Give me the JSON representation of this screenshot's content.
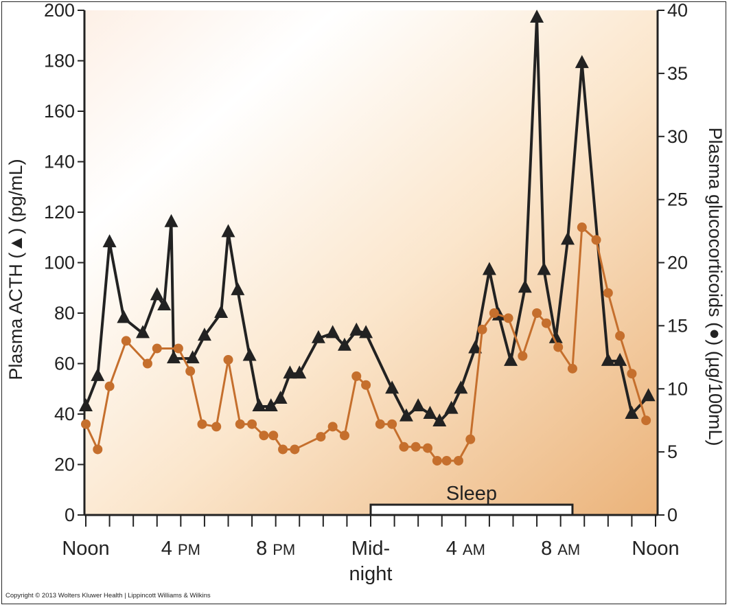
{
  "chart_data": {
    "type": "line",
    "left_axis": {
      "title": "Plasma ACTH (▲) (pg/mL)",
      "range": [
        0,
        200
      ],
      "ticks": [
        "0",
        "20",
        "40",
        "60",
        "80",
        "100",
        "120",
        "140",
        "160",
        "180",
        "200"
      ]
    },
    "right_axis": {
      "title": "Plasma glucocorticoids (●) (µg/100mL)",
      "range": [
        0,
        40
      ],
      "ticks": [
        "0",
        "5",
        "10",
        "15",
        "20",
        "25",
        "30",
        "35",
        "40"
      ]
    },
    "x_axis": {
      "range_hours_since_noon": [
        0,
        24
      ],
      "labels": [
        {
          "hour": 0,
          "line1": "Noon",
          "small1": "",
          "line2": ""
        },
        {
          "hour": 4,
          "line1": "4 ",
          "small1": "PM",
          "line2": ""
        },
        {
          "hour": 8,
          "line1": "8 ",
          "small1": "PM",
          "line2": ""
        },
        {
          "hour": 12,
          "line1": "Mid-",
          "small1": "",
          "line2": "night"
        },
        {
          "hour": 16,
          "line1": "4 ",
          "small1": "AM",
          "line2": ""
        },
        {
          "hour": 20,
          "line1": "8 ",
          "small1": "AM",
          "line2": ""
        },
        {
          "hour": 24,
          "line1": "Noon",
          "small1": "",
          "line2": ""
        }
      ]
    },
    "sleep_period": {
      "label": "Sleep",
      "start_hour": 12.0,
      "end_hour": 20.5
    },
    "series": [
      {
        "name": "Plasma ACTH",
        "axis": "left",
        "marker": "triangle",
        "color": "#222222",
        "points": [
          [
            0.0,
            43
          ],
          [
            0.5,
            55
          ],
          [
            1.0,
            108
          ],
          [
            1.6,
            78
          ],
          [
            2.4,
            72
          ],
          [
            3.0,
            87
          ],
          [
            3.3,
            83
          ],
          [
            3.6,
            116
          ],
          [
            3.7,
            62
          ],
          [
            4.5,
            62
          ],
          [
            5.0,
            71
          ],
          [
            5.7,
            80
          ],
          [
            6.0,
            112
          ],
          [
            6.4,
            89
          ],
          [
            6.9,
            63
          ],
          [
            7.3,
            43
          ],
          [
            7.8,
            43
          ],
          [
            8.2,
            46
          ],
          [
            8.6,
            56
          ],
          [
            9.0,
            56
          ],
          [
            9.8,
            70
          ],
          [
            10.4,
            72
          ],
          [
            10.9,
            67
          ],
          [
            11.4,
            73
          ],
          [
            11.8,
            72
          ],
          [
            12.9,
            50
          ],
          [
            13.5,
            39
          ],
          [
            14.0,
            43
          ],
          [
            14.5,
            40
          ],
          [
            14.9,
            37
          ],
          [
            15.4,
            42
          ],
          [
            15.8,
            50
          ],
          [
            16.4,
            66
          ],
          [
            17.0,
            97
          ],
          [
            17.4,
            79
          ],
          [
            17.9,
            61
          ],
          [
            18.5,
            90
          ],
          [
            19.0,
            197
          ],
          [
            19.3,
            97
          ],
          [
            19.8,
            70
          ],
          [
            20.3,
            109
          ],
          [
            20.9,
            179
          ],
          [
            22.0,
            61
          ],
          [
            22.5,
            61
          ],
          [
            23.0,
            40
          ],
          [
            23.7,
            47
          ]
        ]
      },
      {
        "name": "Plasma glucocorticoids",
        "axis": "right",
        "marker": "circle",
        "color": "#c56f2d",
        "points": [
          [
            0.0,
            7.2
          ],
          [
            0.5,
            5.2
          ],
          [
            1.0,
            10.2
          ],
          [
            1.7,
            13.8
          ],
          [
            2.6,
            12.0
          ],
          [
            3.0,
            13.2
          ],
          [
            3.9,
            13.2
          ],
          [
            4.4,
            11.4
          ],
          [
            4.9,
            7.2
          ],
          [
            5.5,
            7.0
          ],
          [
            6.0,
            12.3
          ],
          [
            6.5,
            7.2
          ],
          [
            7.0,
            7.2
          ],
          [
            7.5,
            6.3
          ],
          [
            7.9,
            6.3
          ],
          [
            8.3,
            5.2
          ],
          [
            8.8,
            5.2
          ],
          [
            9.9,
            6.2
          ],
          [
            10.4,
            7.0
          ],
          [
            10.9,
            6.3
          ],
          [
            11.4,
            11.0
          ],
          [
            11.8,
            10.3
          ],
          [
            12.4,
            7.2
          ],
          [
            12.9,
            7.2
          ],
          [
            13.4,
            5.4
          ],
          [
            13.9,
            5.4
          ],
          [
            14.4,
            5.3
          ],
          [
            14.8,
            4.3
          ],
          [
            15.2,
            4.3
          ],
          [
            15.7,
            4.3
          ],
          [
            16.2,
            6.0
          ],
          [
            16.7,
            14.7
          ],
          [
            17.2,
            16.0
          ],
          [
            17.8,
            15.6
          ],
          [
            18.4,
            12.6
          ],
          [
            19.0,
            16.0
          ],
          [
            19.4,
            15.2
          ],
          [
            19.9,
            13.3
          ],
          [
            20.5,
            11.6
          ],
          [
            20.9,
            22.8
          ],
          [
            21.5,
            21.8
          ],
          [
            22.0,
            17.6
          ],
          [
            22.5,
            14.2
          ],
          [
            23.0,
            11.2
          ],
          [
            23.6,
            7.5
          ]
        ]
      }
    ]
  },
  "copyright": "Copyright © 2013 Wolters Kluwer Health | Lippincott Williams & Wilkins"
}
